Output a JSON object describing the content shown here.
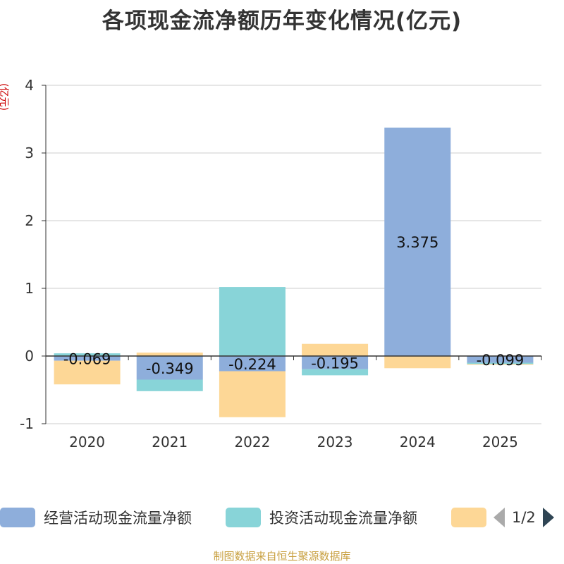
{
  "title": "各项现金流净额历年变化情况(亿元)",
  "unit": "(亿元)",
  "source": "制图数据来自恒生聚源数据库",
  "pager": {
    "text": "1/2"
  },
  "chart_data": {
    "type": "bar",
    "stacked": true,
    "categories": [
      "2020",
      "2021",
      "2022",
      "2023",
      "2024",
      "2025"
    ],
    "ylim": [
      -1,
      4
    ],
    "yticks": [
      -1,
      0,
      1,
      2,
      3,
      4
    ],
    "grid": true,
    "legend_position": "bottom",
    "series": [
      {
        "name": "经营活动现金流量净额",
        "color": "#8eaedb",
        "values": [
          -0.069,
          -0.349,
          -0.224,
          -0.195,
          3.375,
          -0.099
        ],
        "labels": [
          "-0.069",
          "-0.349",
          "-0.224",
          "-0.195",
          "3.375",
          "-0.099"
        ]
      },
      {
        "name": "投资活动现金流量净额",
        "color": "#88d4d8",
        "values": [
          0.04,
          -0.17,
          1.02,
          -0.09,
          0.0,
          -0.02
        ]
      },
      {
        "name": "",
        "color": "#fdd796",
        "values": [
          -0.35,
          0.05,
          -0.68,
          0.18,
          -0.18,
          -0.005
        ]
      }
    ]
  }
}
